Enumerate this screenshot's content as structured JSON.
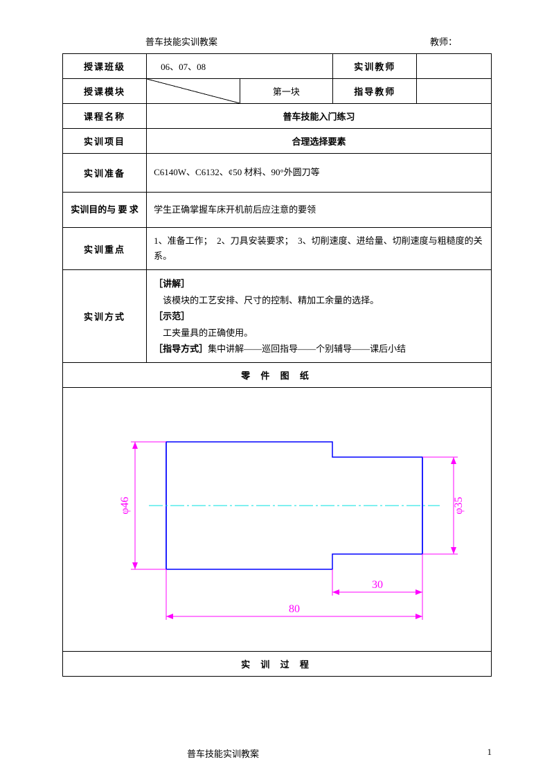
{
  "header": {
    "title": "普车技能实训教案",
    "teacher_label": "教师："
  },
  "table": {
    "row1": {
      "class_label": "授课班级",
      "class_value": "06、07、08",
      "trainer_label": "实训教师",
      "trainer_value": ""
    },
    "row2": {
      "module_label": "授课模块",
      "block_value": "第一块",
      "advisor_label": "指导教师",
      "advisor_value": ""
    },
    "row3": {
      "course_label": "课程名称",
      "course_value": "普车技能入门练习"
    },
    "row4": {
      "item_label": "实训项目",
      "item_value": "合理选择要素"
    },
    "row5": {
      "prep_label": "实训准备",
      "prep_value": "C6140W、C6132、¢50 材料、90°外圆刀等"
    },
    "row6": {
      "goal_label": "实训目的与 要 求",
      "goal_value": "学生正确掌握车床开机前后应注意的要领"
    },
    "row7": {
      "focus_label": "实训重点",
      "focus_value": "1、准备工作；　2、刀具安装要求；　3、切削速度、进给量、切削速度与粗糙度的关系。"
    },
    "row8": {
      "method_label": "实训方式",
      "lecture_label": "［讲解］",
      "lecture_text": "　该模块的工艺安排、尺寸的控制、精加工余量的选择。",
      "demo_label": "［示范］",
      "demo_text": "　工夹量具的正确使用。",
      "guide_label": "［指导方式］",
      "guide_text": "集中讲解——巡回指导——个别辅导——课后小结"
    },
    "drawing_title": "零 件 图 纸",
    "process_title": "实 训 过 程"
  },
  "drawing": {
    "dim_d46": "φ46",
    "dim_d35": "φ35",
    "dim_80": "80",
    "dim_30": "30",
    "colors": {
      "outline": "#0000ff",
      "dimension": "#ff00ff",
      "centerline": "#00e0e0",
      "text": "#ff00ff"
    },
    "stroke_width": 1.5
  },
  "footer": {
    "text": "普车技能实训教案",
    "page": "1"
  }
}
